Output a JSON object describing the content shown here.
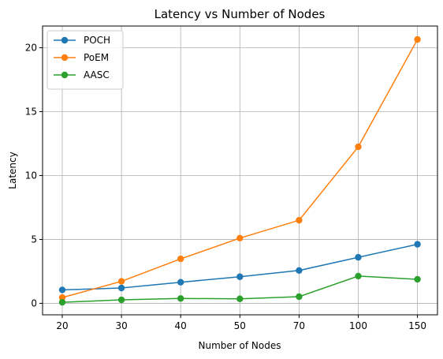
{
  "chart_data": {
    "type": "line",
    "title": "Latency vs Number of Nodes",
    "xlabel": "Number of Nodes",
    "ylabel": "Latency",
    "categories": [
      "20",
      "30",
      "40",
      "50",
      "70",
      "100",
      "150"
    ],
    "series": [
      {
        "name": "POCH",
        "color": "#1f77b4",
        "values": [
          1.05,
          1.2,
          1.65,
          2.08,
          2.57,
          3.6,
          4.62
        ]
      },
      {
        "name": "PoEM",
        "color": "#ff7f0e",
        "values": [
          0.45,
          1.72,
          3.48,
          5.1,
          6.5,
          12.25,
          20.65
        ]
      },
      {
        "name": "AASC",
        "color": "#2ca02c",
        "values": [
          0.08,
          0.27,
          0.38,
          0.35,
          0.52,
          2.13,
          1.88
        ]
      }
    ],
    "ylim": [
      -0.9,
      21.7
    ],
    "yticks": [
      0,
      5,
      10,
      15,
      20
    ],
    "grid": true,
    "legend_position": "top-left"
  }
}
